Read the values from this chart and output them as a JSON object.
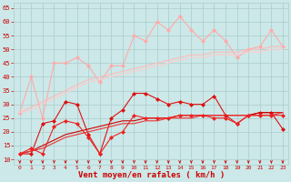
{
  "background_color": "#cce8e8",
  "grid_color": "#aacccc",
  "xlabel": "Vent moyen/en rafales ( km/h )",
  "xlabel_color": "#cc0000",
  "xlabel_fontsize": 6.5,
  "xtick_labels": [
    "0",
    "1",
    "2",
    "3",
    "4",
    "5",
    "6",
    "7",
    "8",
    "9",
    "10",
    "11",
    "12",
    "13",
    "14",
    "15",
    "16",
    "17",
    "18",
    "19",
    "20",
    "21",
    "22",
    "23"
  ],
  "ytick_values": [
    10,
    15,
    20,
    25,
    30,
    35,
    40,
    45,
    50,
    55,
    60,
    65
  ],
  "xlim": [
    -0.5,
    23.5
  ],
  "ylim": [
    8,
    67
  ],
  "series": [
    {
      "color": "#ffaaaa",
      "linewidth": 0.8,
      "marker": "D",
      "markersize": 2.0,
      "data": [
        27,
        40,
        25,
        45,
        45,
        47,
        44,
        38,
        44,
        44,
        55,
        53,
        60,
        57,
        62,
        57,
        53,
        57,
        53,
        47,
        50,
        51,
        57,
        51
      ]
    },
    {
      "color": "#ffbbbb",
      "linewidth": 0.8,
      "marker": null,
      "markersize": 0,
      "data": [
        27,
        29,
        31,
        33,
        35,
        37,
        39,
        40,
        41,
        42,
        43,
        44,
        45,
        46,
        47,
        48,
        48,
        49,
        49,
        49,
        50,
        50,
        51,
        51
      ]
    },
    {
      "color": "#ffcccc",
      "linewidth": 0.8,
      "marker": null,
      "markersize": 0,
      "data": [
        27,
        28,
        30,
        32,
        34,
        36,
        38,
        39,
        40,
        41,
        42,
        43,
        44,
        45,
        46,
        47,
        47,
        48,
        48,
        48,
        49,
        49,
        50,
        50
      ]
    },
    {
      "color": "#dd1111",
      "linewidth": 0.8,
      "marker": "D",
      "markersize": 2.0,
      "data": [
        12,
        12,
        23,
        24,
        31,
        30,
        19,
        12,
        25,
        28,
        34,
        34,
        32,
        30,
        31,
        30,
        30,
        33,
        26,
        23,
        26,
        27,
        27,
        21
      ]
    },
    {
      "color": "#cc0000",
      "linewidth": 0.8,
      "marker": null,
      "markersize": 0,
      "data": [
        12,
        13,
        15,
        17,
        19,
        20,
        21,
        22,
        23,
        24,
        24,
        25,
        25,
        25,
        26,
        26,
        26,
        26,
        26,
        26,
        26,
        27,
        27,
        27
      ]
    },
    {
      "color": "#ee3333",
      "linewidth": 0.8,
      "marker": null,
      "markersize": 0,
      "data": [
        12,
        13,
        14,
        16,
        18,
        19,
        20,
        21,
        22,
        23,
        23,
        24,
        24,
        25,
        25,
        25,
        26,
        26,
        26,
        26,
        26,
        26,
        26,
        27
      ]
    },
    {
      "color": "#ee2222",
      "linewidth": 0.8,
      "marker": "D",
      "markersize": 2.0,
      "data": [
        12,
        14,
        12,
        22,
        24,
        23,
        18,
        12,
        18,
        20,
        26,
        25,
        25,
        25,
        26,
        26,
        26,
        25,
        25,
        23,
        26,
        26,
        26,
        26
      ]
    }
  ],
  "tick_color": "#cc0000"
}
